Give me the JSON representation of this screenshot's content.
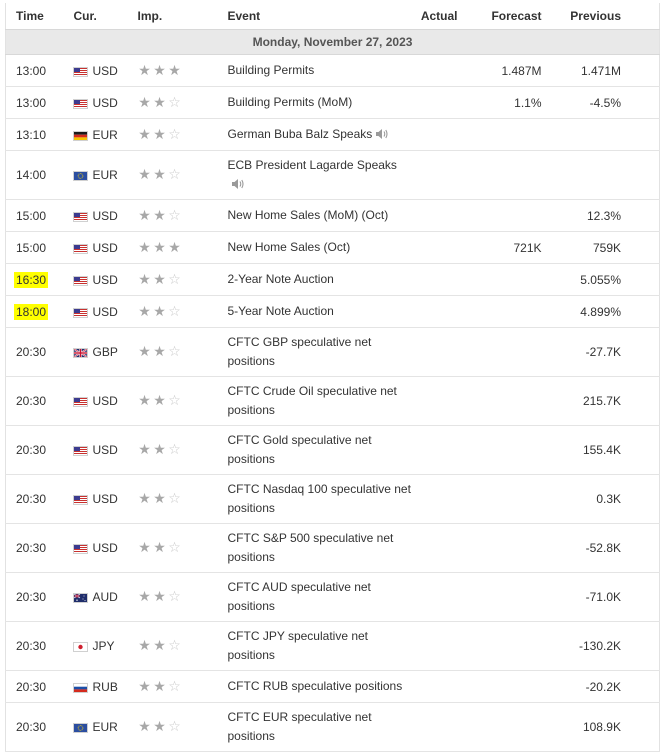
{
  "headers": {
    "time": "Time",
    "cur": "Cur.",
    "imp": "Imp.",
    "event": "Event",
    "actual": "Actual",
    "forecast": "Forecast",
    "previous": "Previous"
  },
  "date_label": "Monday, November 27, 2023",
  "colors": {
    "highlight": "#ffff00",
    "star_on": "#a8a8a8",
    "star_off": "#c9c9c9"
  },
  "rows": [
    {
      "time": "13:00",
      "currency": "USD",
      "flag": "us-flag-icon",
      "importance": 3,
      "event": "Building Permits",
      "speaker": false,
      "actual": "",
      "forecast": "1.487M",
      "previous": "1.471M",
      "highlight": false,
      "lines": 1
    },
    {
      "time": "13:00",
      "currency": "USD",
      "flag": "us-flag-icon",
      "importance": 2,
      "event": "Building Permits (MoM)",
      "speaker": false,
      "actual": "",
      "forecast": "1.1%",
      "previous": "-4.5%",
      "highlight": false,
      "lines": 1
    },
    {
      "time": "13:10",
      "currency": "EUR",
      "flag": "de-flag-icon",
      "importance": 2,
      "event": "German Buba Balz Speaks",
      "speaker": true,
      "actual": "",
      "forecast": "",
      "previous": "",
      "highlight": false,
      "lines": 1
    },
    {
      "time": "14:00",
      "currency": "EUR",
      "flag": "eu-flag-icon",
      "importance": 2,
      "event": "ECB President Lagarde Speaks",
      "speaker": true,
      "speaker_newline": true,
      "actual": "",
      "forecast": "",
      "previous": "",
      "highlight": false,
      "lines": 2
    },
    {
      "time": "15:00",
      "currency": "USD",
      "flag": "us-flag-icon",
      "importance": 2,
      "event": "New Home Sales (MoM) (Oct)",
      "speaker": false,
      "actual": "",
      "forecast": "",
      "previous": "12.3%",
      "highlight": false,
      "lines": 1
    },
    {
      "time": "15:00",
      "currency": "USD",
      "flag": "us-flag-icon",
      "importance": 3,
      "event": "New Home Sales (Oct)",
      "speaker": false,
      "actual": "",
      "forecast": "721K",
      "previous": "759K",
      "highlight": false,
      "lines": 1
    },
    {
      "time": "16:30",
      "currency": "USD",
      "flag": "us-flag-icon",
      "importance": 2,
      "event": "2-Year Note Auction",
      "speaker": false,
      "actual": "",
      "forecast": "",
      "previous": "5.055%",
      "highlight": true,
      "lines": 1
    },
    {
      "time": "18:00",
      "currency": "USD",
      "flag": "us-flag-icon",
      "importance": 2,
      "event": "5-Year Note Auction",
      "speaker": false,
      "actual": "",
      "forecast": "",
      "previous": "4.899%",
      "highlight": true,
      "lines": 1
    },
    {
      "time": "20:30",
      "currency": "GBP",
      "flag": "gb-flag-icon",
      "importance": 2,
      "event": "CFTC GBP speculative net positions",
      "speaker": false,
      "actual": "",
      "forecast": "",
      "previous": "-27.7K",
      "highlight": false,
      "lines": 2
    },
    {
      "time": "20:30",
      "currency": "USD",
      "flag": "us-flag-icon",
      "importance": 2,
      "event": "CFTC Crude Oil speculative net positions",
      "speaker": false,
      "actual": "",
      "forecast": "",
      "previous": "215.7K",
      "highlight": false,
      "lines": 2
    },
    {
      "time": "20:30",
      "currency": "USD",
      "flag": "us-flag-icon",
      "importance": 2,
      "event": "CFTC Gold speculative net positions",
      "speaker": false,
      "actual": "",
      "forecast": "",
      "previous": "155.4K",
      "highlight": false,
      "lines": 2
    },
    {
      "time": "20:30",
      "currency": "USD",
      "flag": "us-flag-icon",
      "importance": 2,
      "event": "CFTC Nasdaq 100 speculative net positions",
      "speaker": false,
      "actual": "",
      "forecast": "",
      "previous": "0.3K",
      "highlight": false,
      "lines": 2
    },
    {
      "time": "20:30",
      "currency": "USD",
      "flag": "us-flag-icon",
      "importance": 2,
      "event": "CFTC S&P 500 speculative net positions",
      "speaker": false,
      "actual": "",
      "forecast": "",
      "previous": "-52.8K",
      "highlight": false,
      "lines": 2
    },
    {
      "time": "20:30",
      "currency": "AUD",
      "flag": "au-flag-icon",
      "importance": 2,
      "event": "CFTC AUD speculative net positions",
      "speaker": false,
      "actual": "",
      "forecast": "",
      "previous": "-71.0K",
      "highlight": false,
      "lines": 2
    },
    {
      "time": "20:30",
      "currency": "JPY",
      "flag": "jp-flag-icon",
      "importance": 2,
      "event": "CFTC JPY speculative net positions",
      "speaker": false,
      "actual": "",
      "forecast": "",
      "previous": "-130.2K",
      "highlight": false,
      "lines": 2
    },
    {
      "time": "20:30",
      "currency": "RUB",
      "flag": "ru-flag-icon",
      "importance": 2,
      "event": "CFTC RUB speculative positions",
      "speaker": false,
      "actual": "",
      "forecast": "",
      "previous": "-20.2K",
      "highlight": false,
      "lines": 1
    },
    {
      "time": "20:30",
      "currency": "EUR",
      "flag": "eu-flag-icon",
      "importance": 2,
      "event": "CFTC EUR speculative net positions",
      "speaker": false,
      "actual": "",
      "forecast": "",
      "previous": "108.9K",
      "highlight": false,
      "lines": 2
    }
  ]
}
